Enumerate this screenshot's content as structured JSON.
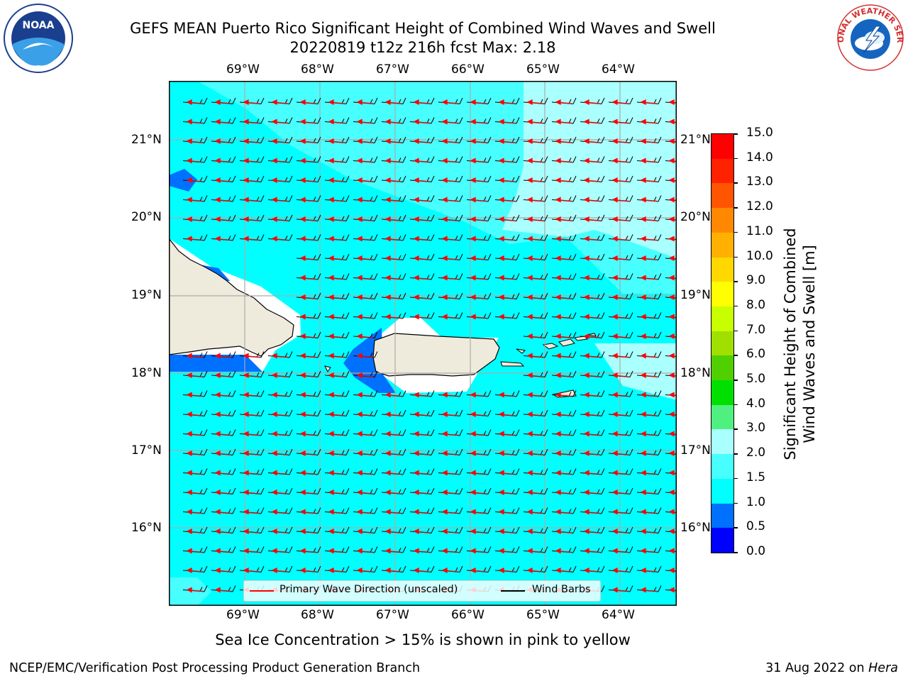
{
  "title": {
    "line1": "GEFS MEAN Puerto Rico Significant Height of Combined Wind Waves and Swell",
    "line2": "20220819 t12z 216h fcst   Max: 2.18"
  },
  "logos": {
    "noaa": {
      "text": "NOAA",
      "icon": "noaa-logo-icon"
    },
    "nws": {
      "text": "NATIONAL WEATHER SERVICE",
      "icon": "nws-logo-icon"
    }
  },
  "axes": {
    "lon_labels": [
      "69°W",
      "68°W",
      "67°W",
      "66°W",
      "65°W",
      "64°W"
    ],
    "lat_labels": [
      "21°N",
      "20°N",
      "19°N",
      "18°N",
      "17°N",
      "16°N"
    ]
  },
  "legend": {
    "wave_direction": "Primary Wave Direction (unscaled)",
    "wind_barbs": "Wind Barbs",
    "wave_color": "#ff0000",
    "barb_color": "#000000"
  },
  "colorbar": {
    "label": "Significant Height of Combined\nWind Waves and Swell [m]",
    "ticks": [
      "0.0",
      "0.5",
      "1.0",
      "1.5",
      "2.0",
      "3.0",
      "4.0",
      "5.0",
      "6.0",
      "7.0",
      "8.0",
      "9.0",
      "10.0",
      "11.0",
      "12.0",
      "13.0",
      "14.0",
      "15.0"
    ],
    "colors": [
      "#0000ff",
      "#0070ff",
      "#00ffff",
      "#48ffff",
      "#aaffff",
      "#50f080",
      "#00e000",
      "#50d000",
      "#a0e000",
      "#c8ff00",
      "#ffff00",
      "#ffd800",
      "#ffb000",
      "#ff8800",
      "#ff5500",
      "#ff2200",
      "#ff0000"
    ]
  },
  "map_colors": {
    "sea_main": "#00ffff",
    "sea_light": "#48ffff",
    "sea_lighter": "#aaffff",
    "sea_dark": "#0070ff",
    "land": "#efebdc"
  },
  "footnote": "Sea Ice Concentration > 15% is shown in pink to yellow",
  "footer": {
    "left": "NCEP/EMC/Verification Post Processing Product Generation Branch",
    "right_date": "31 Aug 2022 on ",
    "right_host": "Hera"
  }
}
